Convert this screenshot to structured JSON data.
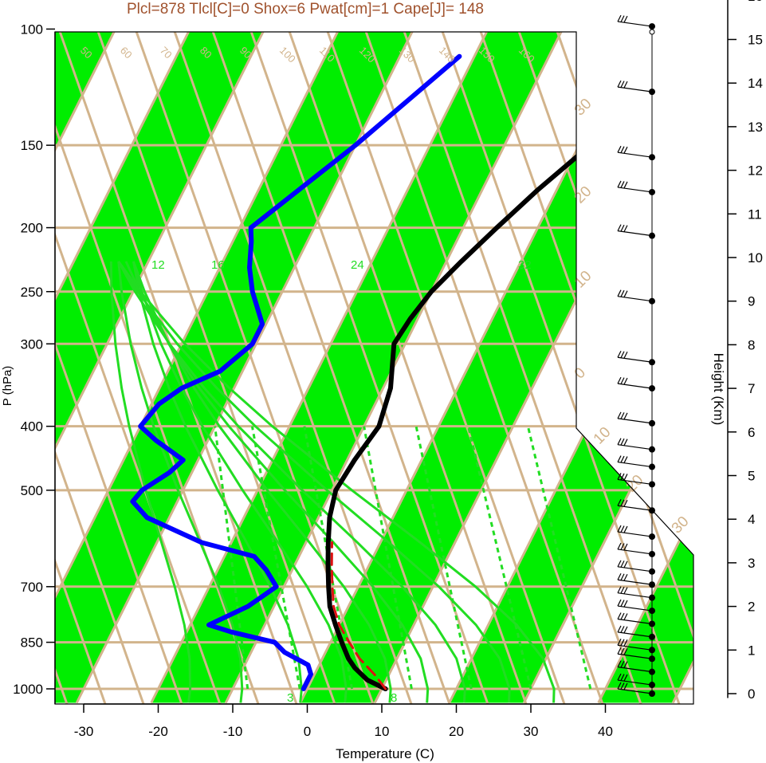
{
  "chart_data": {
    "type": "line",
    "title": "Plcl=878 Tlcl[C]=0 Shox=6 Pwat[cm]=1 Cape[J]= 148",
    "xlabel": "Temperature (C)",
    "ylabel": "P (hPa)",
    "y2label": "Height (Km)",
    "x_ticks": [
      "-30",
      "-20",
      "-10",
      "0",
      "10",
      "20",
      "30",
      "40"
    ],
    "x_tick_values": [
      -30,
      -20,
      -10,
      0,
      10,
      20,
      30,
      40
    ],
    "y_ticks": [
      "100",
      "150",
      "200",
      "250",
      "300",
      "400",
      "500",
      "700",
      "850",
      "1000"
    ],
    "y_tick_values": [
      100,
      150,
      200,
      250,
      300,
      400,
      500,
      700,
      850,
      1000
    ],
    "y_scale": "log",
    "y_reversed": true,
    "xlim": [
      -34,
      36
    ],
    "ylim": [
      1050,
      100
    ],
    "height_ticks": [
      "0",
      "1",
      "2",
      "3",
      "4",
      "5",
      "6",
      "7",
      "8",
      "9",
      "10",
      "11",
      "12",
      "13",
      "14",
      "15",
      "16"
    ],
    "series": [
      {
        "color": "#000000",
        "pressure": [
          1000,
          970,
          930,
          900,
          850,
          800,
          750,
          700,
          650,
          600,
          550,
          500,
          450,
          400,
          350,
          300,
          275,
          250,
          225,
          200,
          175,
          150,
          125,
          110
        ],
        "values": [
          10.5,
          7.5,
          5.0,
          3.5,
          1.5,
          -0.5,
          -2.5,
          -4.0,
          -5.5,
          -7.0,
          -8.5,
          -9.5,
          -9.0,
          -8.0,
          -9.0,
          -11.5,
          -11.0,
          -10.0,
          -8.0,
          -5.5,
          -2.5,
          1.5,
          5.5,
          8.0
        ]
      },
      {
        "color": "#0000ff",
        "pressure": [
          1000,
          950,
          920,
          880,
          850,
          820,
          800,
          750,
          700,
          660,
          630,
          600,
          550,
          520,
          500,
          470,
          450,
          420,
          400,
          370,
          350,
          330,
          300,
          280,
          250,
          230,
          210,
          200,
          150,
          110
        ],
        "values": [
          -0.5,
          -0.5,
          -1.5,
          -5.5,
          -7.5,
          -14.0,
          -17.5,
          -13.5,
          -11.0,
          -13.5,
          -16.0,
          -24.0,
          -33.0,
          -36.0,
          -35.5,
          -33.0,
          -32.0,
          -37.0,
          -40.0,
          -39.0,
          -37.0,
          -33.0,
          -30.5,
          -30.5,
          -34.0,
          -36.0,
          -37.5,
          -38.5,
          -30.0,
          -22.0
        ]
      },
      {
        "color": "#dd1111",
        "dash": true,
        "pressure": [
          1000,
          950,
          900,
          850,
          800,
          750,
          700,
          650,
          600
        ],
        "values": [
          10.5,
          8.0,
          5.0,
          2.5,
          0.0,
          -2.0,
          -3.5,
          -5.0,
          -6.5
        ]
      }
    ],
    "isotherm_labels": [
      "50",
      "60",
      "70",
      "80",
      "90",
      "100",
      "110",
      "120",
      "130",
      "140",
      "150",
      "160"
    ],
    "dry_adiabat_labels": [
      "40",
      "30",
      "20",
      "10",
      "0",
      "-10",
      "-20",
      "-30",
      "10",
      "20",
      "30"
    ],
    "side_temp_labels": [
      "30",
      "20",
      "10",
      "0",
      "10",
      "20",
      "30"
    ],
    "mixing_ratio_labels": [
      "12",
      "16",
      "24",
      "32",
      "3",
      "8"
    ],
    "wind_heights_km": [
      0,
      0.2,
      0.5,
      0.8,
      1.0,
      1.3,
      1.6,
      1.9,
      2.2,
      2.5,
      2.8,
      3.2,
      3.6,
      4.2,
      4.8,
      5.2,
      5.6,
      6.2,
      7.0,
      7.6,
      9.0,
      10.5,
      11.5,
      12.3,
      13.8,
      15.3
    ]
  }
}
